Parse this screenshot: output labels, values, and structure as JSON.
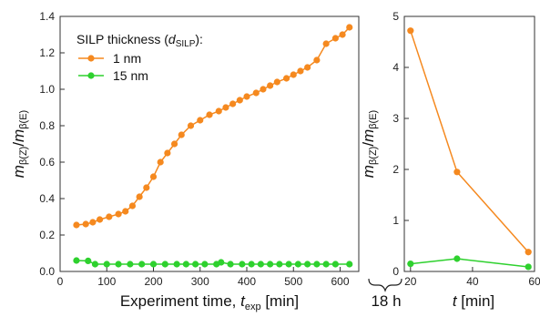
{
  "chart_data": [
    {
      "type": "line",
      "xlabel": {
        "main": "Experiment time, ",
        "var": "t",
        "sub": "exp",
        "unit": " [min]"
      },
      "ylabel": {
        "m1": "m",
        "s1": "β(Z)",
        "slash": "/",
        "m2": "m",
        "s2": "β(E)"
      },
      "xlim": [
        0,
        640
      ],
      "ylim": [
        0,
        1.4
      ],
      "xticks": [
        0,
        100,
        200,
        300,
        400,
        500,
        600
      ],
      "yticks": [
        "0.0",
        "0.2",
        "0.4",
        "0.6",
        "0.8",
        "1.0",
        "1.2",
        "1.4"
      ],
      "legend": {
        "title_main": "SILP thickness (",
        "title_var": "d",
        "title_sub": "SILP",
        "title_end": "):",
        "placement": "top-left"
      },
      "series": [
        {
          "name": "1 nm",
          "color": "#f5891f",
          "x": [
            35,
            55,
            70,
            85,
            105,
            125,
            140,
            155,
            170,
            185,
            200,
            215,
            230,
            245,
            260,
            280,
            300,
            320,
            340,
            355,
            370,
            385,
            400,
            420,
            435,
            450,
            465,
            485,
            500,
            515,
            530,
            550,
            570,
            590,
            605,
            620
          ],
          "y": [
            0.255,
            0.26,
            0.27,
            0.285,
            0.3,
            0.315,
            0.33,
            0.36,
            0.41,
            0.46,
            0.52,
            0.6,
            0.65,
            0.7,
            0.75,
            0.8,
            0.83,
            0.86,
            0.88,
            0.9,
            0.92,
            0.94,
            0.96,
            0.98,
            1.0,
            1.02,
            1.04,
            1.06,
            1.08,
            1.1,
            1.12,
            1.16,
            1.25,
            1.28,
            1.3,
            1.34
          ]
        },
        {
          "name": "15 nm",
          "color": "#2ed12e",
          "x": [
            35,
            60,
            75,
            100,
            125,
            150,
            175,
            200,
            225,
            250,
            270,
            290,
            310,
            335,
            345,
            365,
            390,
            410,
            430,
            450,
            470,
            490,
            510,
            530,
            550,
            570,
            590,
            620
          ],
          "y": [
            0.06,
            0.058,
            0.04,
            0.04,
            0.04,
            0.04,
            0.04,
            0.04,
            0.04,
            0.04,
            0.04,
            0.04,
            0.04,
            0.04,
            0.05,
            0.04,
            0.04,
            0.04,
            0.04,
            0.04,
            0.04,
            0.04,
            0.04,
            0.04,
            0.04,
            0.04,
            0.04,
            0.04
          ]
        }
      ]
    },
    {
      "type": "line",
      "xlabel": {
        "var": "t",
        "unit": " [min]"
      },
      "ylabel": {
        "m1": "m",
        "s1": "β(Z)",
        "slash": "/",
        "m2": "m",
        "s2": "β(E)"
      },
      "xlim": [
        18,
        60
      ],
      "ylim": [
        0,
        5
      ],
      "xticks": [
        20,
        40,
        60
      ],
      "yticks": [
        "0",
        "1",
        "2",
        "3",
        "4",
        "5"
      ],
      "break_label": "18 h",
      "series": [
        {
          "name": "1 nm",
          "color": "#f5891f",
          "x": [
            20,
            35,
            58
          ],
          "y": [
            4.72,
            1.95,
            0.38
          ]
        },
        {
          "name": "15 nm",
          "color": "#2ed12e",
          "x": [
            20,
            35,
            58
          ],
          "y": [
            0.15,
            0.25,
            0.09
          ]
        }
      ]
    }
  ]
}
